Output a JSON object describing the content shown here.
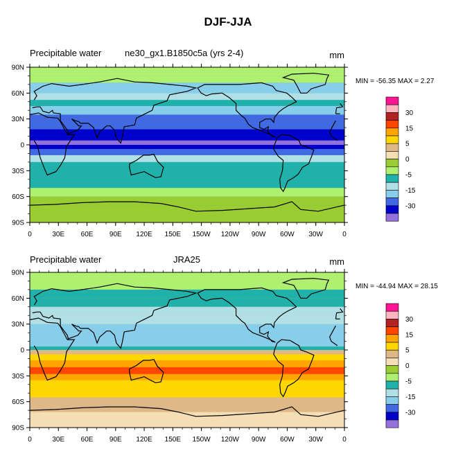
{
  "page_title": "DJF-JJA",
  "chart_data": [
    {
      "type": "heatmap",
      "title_left": "Precipitable water",
      "title_center": "ne30_gx1.B1850c5a (yrs 2-4)",
      "units": "mm",
      "stats": "MIN = -56.35 MAX =   2.27",
      "min": -56.35,
      "max": 2.27,
      "x_ticks": [
        "0",
        "30E",
        "60E",
        "90E",
        "120E",
        "150E",
        "150W",
        "120W",
        "90W",
        "60W",
        "30W",
        "0"
      ],
      "y_ticks": [
        "90N",
        "60N",
        "30N",
        "0",
        "30S",
        "60S",
        "90S"
      ],
      "xlim": [
        0,
        360
      ],
      "ylim": [
        -90,
        90
      ],
      "colorbar_labels": [
        "30",
        "15",
        "5",
        "0",
        "-5",
        "-15",
        "-30"
      ],
      "colorbar_colors": [
        "#ff1493",
        "#ffb6c1",
        "#b22222",
        "#ff4500",
        "#ffa500",
        "#ffd700",
        "#deb887",
        "#f5deb3",
        "#9acd32",
        "#b0f070",
        "#20b2aa",
        "#b0e0e6",
        "#87ceeb",
        "#4169e1",
        "#0000cd",
        "#9370db"
      ],
      "base_level": -6,
      "zonal_profile": [
        [
          90,
          -4
        ],
        [
          80,
          -4
        ],
        [
          72,
          -18
        ],
        [
          60,
          -15
        ],
        [
          52,
          -10
        ],
        [
          45,
          -18
        ],
        [
          35,
          -22
        ],
        [
          25,
          -26
        ],
        [
          18,
          -35
        ],
        [
          10,
          -40
        ],
        [
          5,
          -42
        ],
        [
          0,
          -40
        ],
        [
          -5,
          -25
        ],
        [
          -12,
          -14
        ],
        [
          -20,
          -7
        ],
        [
          -30,
          -6
        ],
        [
          -40,
          -6
        ],
        [
          -50,
          -4
        ],
        [
          -60,
          -2
        ],
        [
          -70,
          -1
        ],
        [
          -90,
          -1
        ]
      ]
    },
    {
      "type": "heatmap",
      "title_left": "Precipitable water",
      "title_center": "JRA25",
      "units": "mm",
      "stats": "MIN = -44.94 MAX = 28.15",
      "min": -44.94,
      "max": 28.15,
      "x_ticks": [
        "0",
        "30E",
        "60E",
        "90E",
        "120E",
        "150E",
        "150W",
        "120W",
        "90W",
        "60W",
        "30W",
        "0"
      ],
      "y_ticks": [
        "90N",
        "60N",
        "30N",
        "0",
        "30S",
        "60S",
        "90S"
      ],
      "xlim": [
        0,
        360
      ],
      "ylim": [
        -90,
        90
      ],
      "colorbar_labels": [
        "30",
        "15",
        "5",
        "0",
        "-5",
        "-15",
        "-30"
      ],
      "colorbar_colors": [
        "#ff1493",
        "#ffb6c1",
        "#b22222",
        "#ff4500",
        "#ffa500",
        "#ffd700",
        "#deb887",
        "#f5deb3",
        "#9acd32",
        "#b0f070",
        "#20b2aa",
        "#b0e0e6",
        "#87ceeb",
        "#4169e1",
        "#0000cd",
        "#9370db"
      ],
      "base_level": 4,
      "zonal_profile": [
        [
          90,
          -5
        ],
        [
          80,
          -5
        ],
        [
          70,
          -8
        ],
        [
          60,
          -10
        ],
        [
          50,
          -12
        ],
        [
          40,
          -14
        ],
        [
          30,
          -16
        ],
        [
          20,
          -18
        ],
        [
          10,
          -18
        ],
        [
          4,
          -6
        ],
        [
          0,
          3
        ],
        [
          -5,
          8
        ],
        [
          -12,
          14
        ],
        [
          -20,
          15
        ],
        [
          -28,
          13
        ],
        [
          -35,
          9
        ],
        [
          -45,
          5
        ],
        [
          -55,
          4
        ],
        [
          -65,
          3
        ],
        [
          -72,
          1
        ],
        [
          -90,
          1
        ]
      ]
    }
  ]
}
